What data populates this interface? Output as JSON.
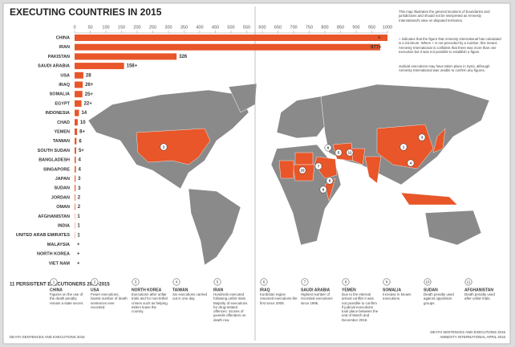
{
  "chart_data": {
    "type": "bar",
    "title": "EXECUTING COUNTRIES IN 2015",
    "color": "#e8562a",
    "categories": [
      "CHINA",
      "IRAN",
      "PAKISTAN",
      "SAUDI ARABIA",
      "USA",
      "IRAQ",
      "SOMALIA",
      "EGYPT",
      "INDONESIA",
      "CHAD",
      "YEMEN",
      "TAIWAN",
      "SOUTH SUDAN",
      "BANGLADESH",
      "SINGAPORE",
      "JAPAN",
      "SUDAN",
      "JORDAN",
      "OMAN",
      "AFGHANISTAN",
      "INDIA",
      "UNITED ARAB EMIRATES",
      "MALAYSIA",
      "NORTH KOREA",
      "VIET NAM"
    ],
    "values": [
      1000,
      977,
      326,
      158,
      28,
      26,
      25,
      22,
      14,
      10,
      8,
      6,
      5,
      4,
      4,
      3,
      3,
      2,
      2,
      1,
      1,
      1,
      null,
      null,
      null
    ],
    "value_labels": [
      "+",
      "977+",
      "326",
      "158+",
      "28",
      "26+",
      "25+",
      "22+",
      "14",
      "10",
      "8+",
      "6",
      "5+",
      "4",
      "4",
      "3",
      "3",
      "2",
      "2",
      "1",
      "1",
      "1",
      "+",
      "+",
      "+"
    ],
    "xlim": [
      0,
      1000
    ],
    "xticks": [
      0,
      50,
      100,
      150,
      200,
      250,
      300,
      350,
      400,
      450,
      500,
      550,
      600,
      650,
      700,
      750,
      800,
      850,
      900,
      950,
      1000
    ]
  },
  "notes": [
    "This map illustrates the general locations of boundaries and jurisdictions and should not be interpreted as Amnesty International's view on disputed territories.",
    "+ indicates that the figure that Amnesty International has calculated is a minimum. Where + is not preceded by a number, this means Amnesty International is confident that there was more than one execution but it was not possible to establish a figure.",
    "Judicial executions may have taken place in Syria, although Amnesty International was unable to confirm any figures."
  ],
  "map": {
    "markers": [
      "1",
      "2",
      "3",
      "4",
      "5",
      "6",
      "7",
      "8",
      "9",
      "10",
      "11"
    ]
  },
  "persistent": {
    "title": "11 PERSISTENT EXECUTIONERS 2011-2015",
    "items": [
      {
        "n": "1",
        "name": "CHINA",
        "text": "Figures on the use of the death penalty remain a state secret."
      },
      {
        "n": "2",
        "name": "USA",
        "text": "Fewer executions, lowest number of death sentences ever recorded."
      },
      {
        "n": "3",
        "name": "NORTH KOREA",
        "text": "Executions after unfair trials and for non-lethal crimes such as helping elders leave the country."
      },
      {
        "n": "4",
        "name": "TAIWAN",
        "text": "Six executions carried out in one day."
      },
      {
        "n": "5",
        "name": "IRAN",
        "text": "Hundreds executed following unfair trials. Majority of executions for drug-related offences. Scores of juvenile offenders on death row."
      },
      {
        "n": "6",
        "name": "IRAQ",
        "text": "Kurdistan region resumed executions the first since 2008."
      },
      {
        "n": "7",
        "name": "SAUDI ARABIA",
        "text": "Highest number of recorded executions since 1995."
      },
      {
        "n": "8",
        "name": "YEMEN",
        "text": "Due to the internal armed conflict it was not possible to confirm if judicial executions took place between the end of March and December 2015."
      },
      {
        "n": "9",
        "name": "SOMALIA",
        "text": "Increase in known executions."
      },
      {
        "n": "10",
        "name": "SUDAN",
        "text": "Death penalty used against opposition groups."
      },
      {
        "n": "11",
        "name": "AFGHANISTAN",
        "text": "Death penalty used after unfair trials."
      }
    ]
  },
  "footer": {
    "left": "DEATH SENTENCES AND EXECUTIONS 2015",
    "right1": "DEATH SENTENCES AND EXECUTIONS 2015",
    "right2": "AMNESTY INTERNATIONAL APRIL 2016"
  }
}
